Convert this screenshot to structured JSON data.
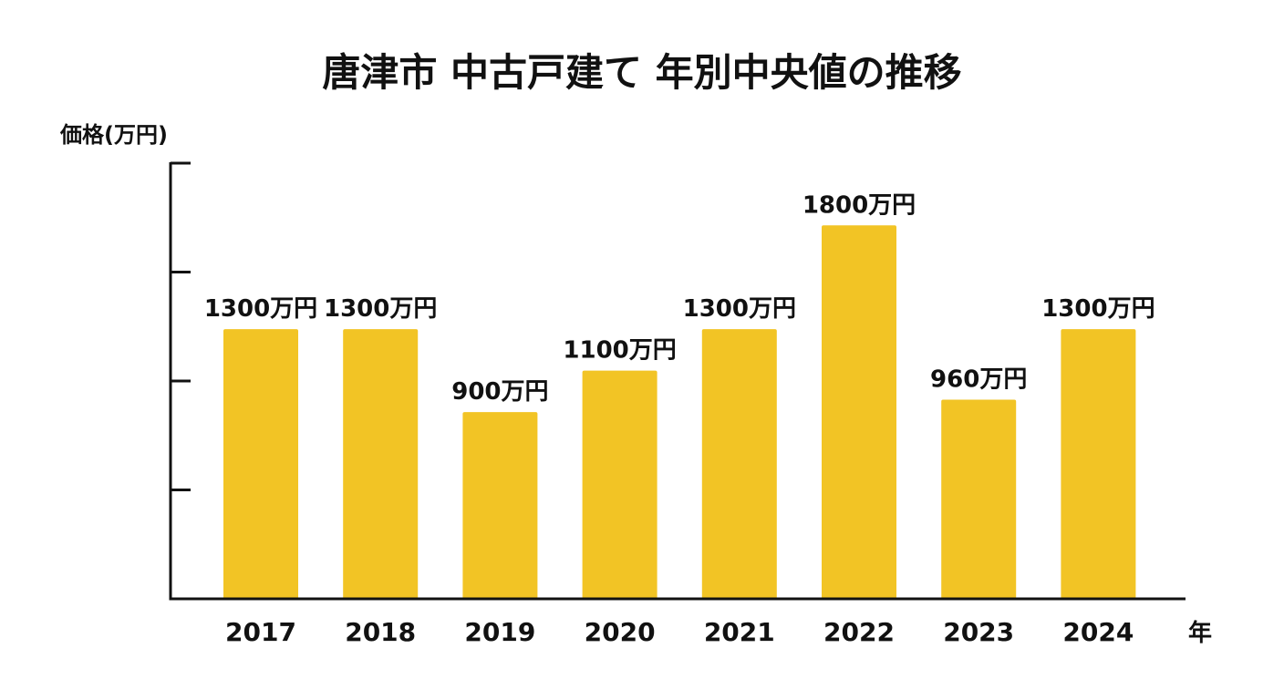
{
  "chart_data": {
    "type": "bar",
    "title": "唐津市 中古戸建て 年別中央値の推移",
    "ylabel": "価格(万円)",
    "xlabel": "年",
    "categories": [
      "2017",
      "2018",
      "2019",
      "2020",
      "2021",
      "2022",
      "2023",
      "2024"
    ],
    "values": [
      1300,
      1300,
      900,
      1100,
      1300,
      1800,
      960,
      1300
    ],
    "value_unit": "万円",
    "data_labels": [
      "1300万円",
      "1300万円",
      "900万円",
      "1100万円",
      "1300万円",
      "1800万円",
      "960万円",
      "1300万円"
    ],
    "ylim": [
      0,
      2100
    ],
    "y_ticks_unlabeled": [
      0,
      525,
      1050,
      1575,
      2100
    ],
    "grid": false,
    "legend": "none",
    "colors": {
      "bar": "#F2C425",
      "axis": "#111111",
      "text": "#111111"
    }
  }
}
